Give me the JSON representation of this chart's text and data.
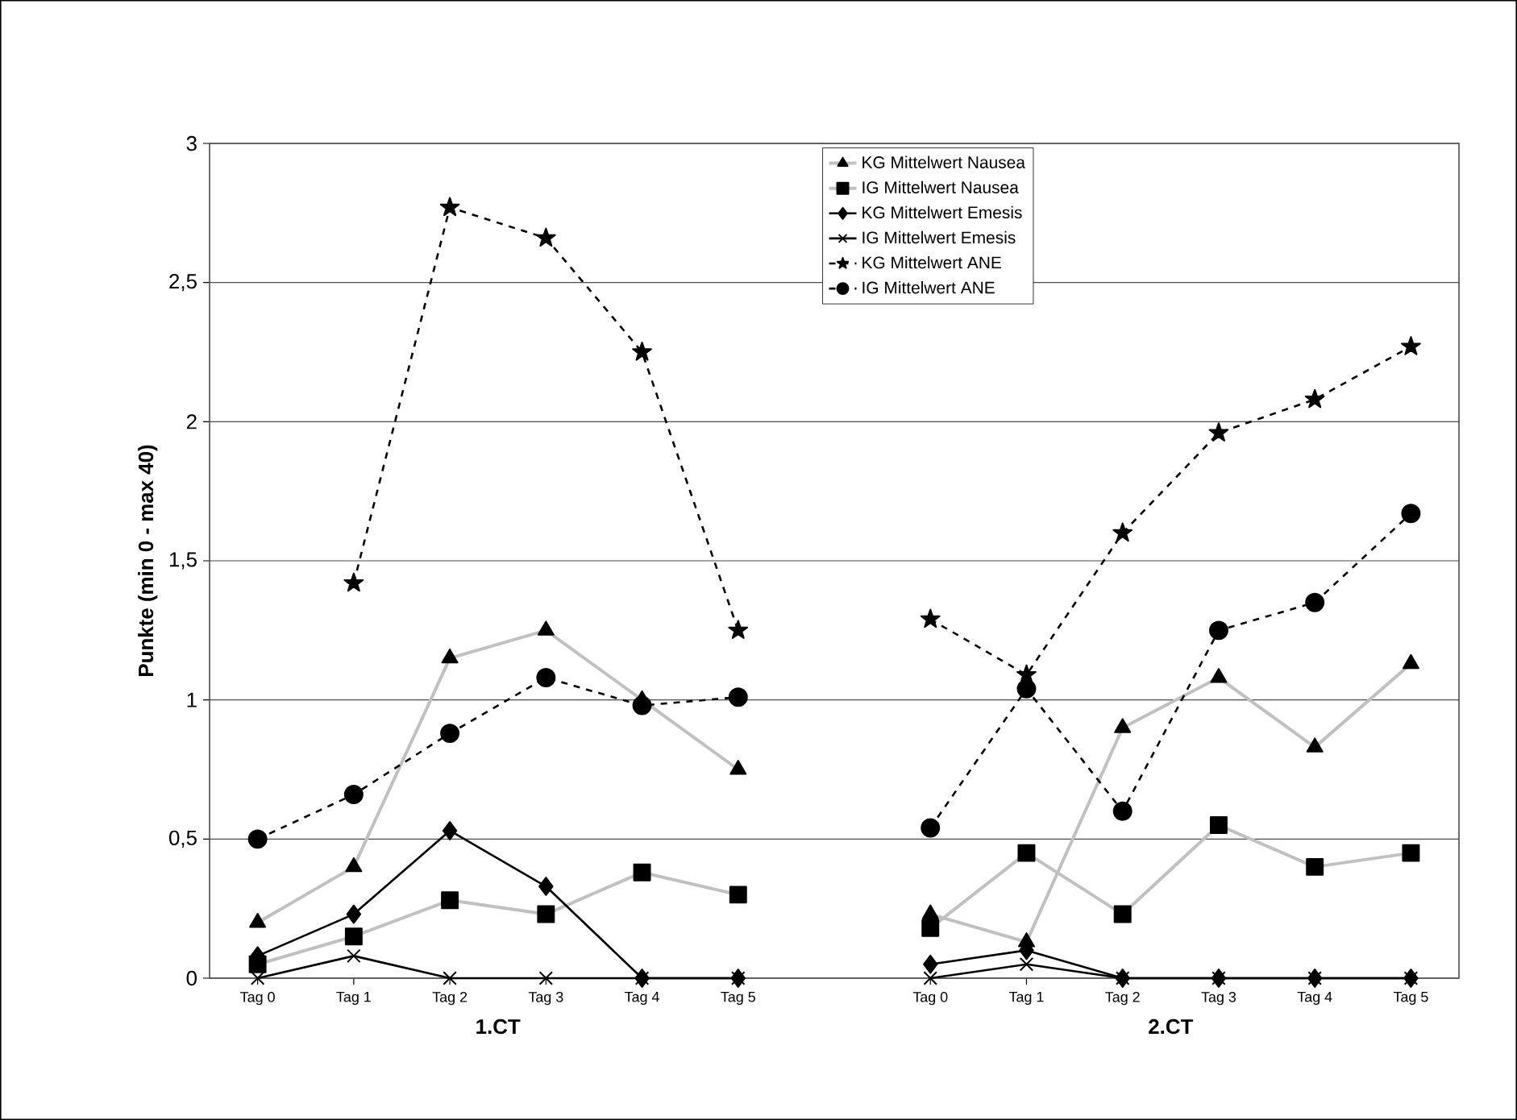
{
  "chart_data": {
    "type": "line",
    "ylabel": "Punkte (min 0 - max 40)",
    "categories": [
      "Tag 0",
      "Tag 1",
      "Tag 2",
      "Tag 3",
      "Tag 4",
      "Tag 5",
      null,
      "Tag 0",
      "Tag 1",
      "Tag 2",
      "Tag 3",
      "Tag 4",
      "Tag 5"
    ],
    "annotations": [
      "1.CT",
      "2.CT"
    ],
    "ylim": [
      0,
      3
    ],
    "yticks": [
      0,
      {
        "value": 0.5,
        "label": "0,5"
      },
      1,
      {
        "value": 1.5,
        "label": "1,5"
      },
      2,
      {
        "value": 2.5,
        "label": "2,5"
      },
      3
    ],
    "grid": "y",
    "legend": "top",
    "series": [
      {
        "name": "KG  Mittelwert Nausea",
        "color": "#c0c0c0",
        "marker": "triangle",
        "line_style": "solid",
        "values": [
          0.2,
          0.4,
          1.15,
          1.25,
          1.0,
          0.75,
          null,
          0.23,
          0.13,
          0.9,
          1.08,
          0.83,
          1.13
        ]
      },
      {
        "name": "IG  Mittelwert Nausea",
        "color": "#c0c0c0",
        "marker": "square",
        "line_style": "solid",
        "values": [
          0.05,
          0.15,
          0.28,
          0.23,
          0.38,
          0.3,
          null,
          0.18,
          0.45,
          0.23,
          0.55,
          0.4,
          0.45
        ]
      },
      {
        "name": "KG Mittelwert Emesis",
        "color": "#000000",
        "marker": "diamond",
        "line_style": "solid",
        "values": [
          0.08,
          0.23,
          0.53,
          0.33,
          0,
          0,
          null,
          0.05,
          0.1,
          0,
          0,
          0,
          0
        ]
      },
      {
        "name": "IG  Mittelwert Emesis",
        "color": "#000000",
        "marker": "cross",
        "line_style": "solid",
        "values": [
          0,
          0.08,
          0,
          0,
          0,
          0,
          null,
          0,
          0.05,
          0,
          0,
          0,
          0
        ]
      },
      {
        "name": "KG Mittelwert ANE",
        "color": "#000000",
        "marker": "star",
        "line_style": "dashed",
        "values": [
          null,
          1.42,
          2.77,
          2.66,
          2.25,
          1.25,
          null,
          1.29,
          1.09,
          1.6,
          1.96,
          2.08,
          2.27
        ]
      },
      {
        "name": "IG  Mittelwert ANE",
        "color": "#000000",
        "marker": "circle",
        "line_style": "dashed",
        "values": [
          0.5,
          0.66,
          0.88,
          1.08,
          0.98,
          1.01,
          null,
          0.54,
          1.04,
          0.6,
          1.25,
          1.35,
          1.67
        ]
      }
    ]
  }
}
